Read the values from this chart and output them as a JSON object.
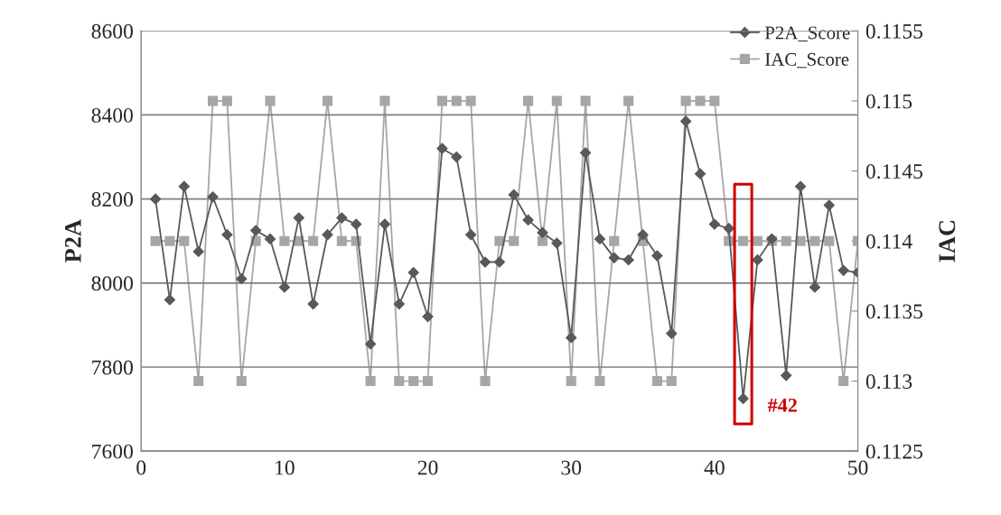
{
  "chart_data": {
    "type": "line",
    "ylabel": "P2A",
    "y2label": "IAC",
    "x": [
      1,
      2,
      3,
      4,
      5,
      6,
      7,
      8,
      9,
      10,
      11,
      12,
      13,
      14,
      15,
      16,
      17,
      18,
      19,
      20,
      21,
      22,
      23,
      24,
      25,
      26,
      27,
      28,
      29,
      30,
      31,
      32,
      33,
      34,
      35,
      36,
      37,
      38,
      39,
      40,
      41,
      42,
      43,
      44,
      45,
      46,
      47,
      48,
      49,
      50
    ],
    "series": [
      {
        "name": "P2A_Score",
        "color": "#595959",
        "marker": "diamond",
        "values": [
          8200,
          7960,
          8230,
          8075,
          8205,
          8115,
          8010,
          8125,
          8105,
          7990,
          8155,
          7950,
          8115,
          8155,
          8140,
          7855,
          8140,
          7950,
          8025,
          7920,
          8320,
          8300,
          8115,
          8050,
          8050,
          8210,
          8150,
          8120,
          8095,
          7870,
          8310,
          8105,
          8060,
          8055,
          8115,
          8065,
          7880,
          8385,
          8260,
          8140,
          8130,
          7725,
          8055,
          8105,
          7780,
          8230,
          7990,
          8185,
          8030,
          8025
        ]
      },
      {
        "name": "IAC_Score",
        "color": "#a6a6a6",
        "marker": "square",
        "axis": "y2",
        "values": [
          0.114,
          0.114,
          0.114,
          0.113,
          0.115,
          0.115,
          0.113,
          0.114,
          0.115,
          0.114,
          0.114,
          0.114,
          0.115,
          0.114,
          0.114,
          0.113,
          0.115,
          0.113,
          0.113,
          0.113,
          0.115,
          0.115,
          0.115,
          0.113,
          0.114,
          0.114,
          0.115,
          0.114,
          0.115,
          0.113,
          0.115,
          0.113,
          0.114,
          0.115,
          0.114,
          0.113,
          0.113,
          0.115,
          0.115,
          0.115,
          0.114,
          0.114,
          0.114,
          0.114,
          0.114,
          0.114,
          0.114,
          0.114,
          0.113,
          0.114
        ]
      }
    ],
    "xlim": [
      0,
      50
    ],
    "xticks": [
      0,
      10,
      20,
      30,
      40,
      50
    ],
    "ylim": [
      7600,
      8600
    ],
    "yticks": [
      7600,
      7800,
      8000,
      8200,
      8400,
      8600
    ],
    "y2lim": [
      0.1125,
      0.1155
    ],
    "y2ticks": [
      0.1125,
      0.113,
      0.1135,
      0.114,
      0.1145,
      0.115,
      0.1155
    ],
    "grid": "y",
    "legend": "top right",
    "annotations": [
      {
        "text": "#42",
        "x": 42,
        "y": 7725
      }
    ]
  }
}
